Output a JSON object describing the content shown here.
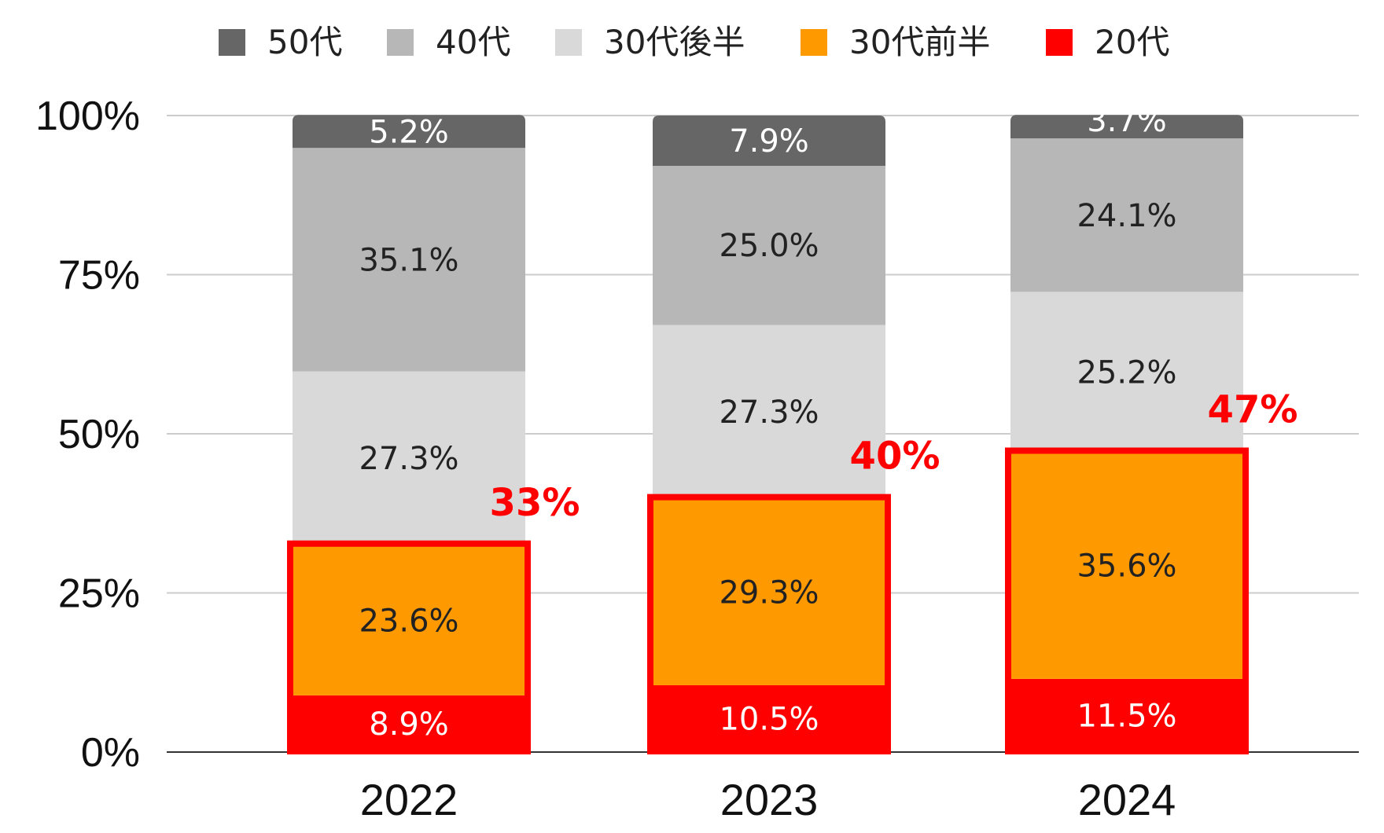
{
  "chart_data": {
    "type": "bar",
    "stacked": true,
    "categories": [
      "2022",
      "2023",
      "2024"
    ],
    "series": [
      {
        "name": "20代",
        "color": "#ff0000",
        "label_color": "#ffffff",
        "values": [
          8.9,
          10.5,
          11.5
        ],
        "labels": [
          "8.9%",
          "10.5%",
          "11.5%"
        ]
      },
      {
        "name": "30代前半",
        "color": "#ff9900",
        "label_color": "#222222",
        "values": [
          23.6,
          29.3,
          35.6
        ],
        "labels": [
          "23.6%",
          "29.3%",
          "35.6%"
        ]
      },
      {
        "name": "30代後半",
        "color": "#d9d9d9",
        "label_color": "#222222",
        "values": [
          27.3,
          27.3,
          25.2
        ],
        "labels": [
          "27.3%",
          "27.3%",
          "25.2%"
        ]
      },
      {
        "name": "40代",
        "color": "#b7b7b7",
        "label_color": "#222222",
        "values": [
          35.1,
          25.0,
          24.1
        ],
        "labels": [
          "35.1%",
          "25.0%",
          "24.1%"
        ]
      },
      {
        "name": "50代",
        "color": "#666666",
        "label_color": "#ffffff",
        "values": [
          5.2,
          7.9,
          3.7
        ],
        "labels": [
          "5.2%",
          "7.9%",
          "3.7%"
        ]
      }
    ],
    "legend_order": [
      "50代",
      "40代",
      "30代後半",
      "30代前半",
      "20代"
    ],
    "legend_position": "top",
    "y_ticks": [
      "0%",
      "25%",
      "50%",
      "75%",
      "100%"
    ],
    "ylim": [
      0,
      100
    ],
    "grid": true,
    "highlights": {
      "color": "#ff0000",
      "series_covered": [
        "20代",
        "30代前半"
      ],
      "values": [
        33,
        40,
        47
      ],
      "labels": [
        "33%",
        "40%",
        "47%"
      ]
    }
  }
}
